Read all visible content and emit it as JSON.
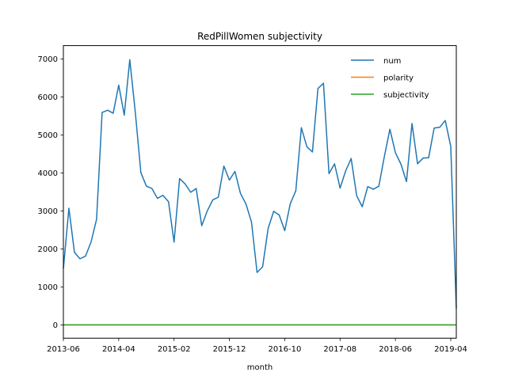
{
  "chart_data": {
    "type": "line",
    "title": "RedPillWomen subjectivity",
    "xlabel": "month",
    "ylabel": "",
    "x_tick_labels": [
      "2013-06",
      "2014-04",
      "2015-02",
      "2015-12",
      "2016-10",
      "2017-08",
      "2018-06",
      "2019-04"
    ],
    "y_ticks": [
      0,
      1000,
      2000,
      3000,
      4000,
      5000,
      6000,
      7000
    ],
    "ylim": [
      -350,
      7350
    ],
    "legend_position": "top-right",
    "grid": false,
    "x": [
      "2013-06",
      "2013-07",
      "2013-08",
      "2013-09",
      "2013-10",
      "2013-11",
      "2013-12",
      "2014-01",
      "2014-02",
      "2014-03",
      "2014-04",
      "2014-05",
      "2014-06",
      "2014-07",
      "2014-08",
      "2014-09",
      "2014-10",
      "2014-11",
      "2014-12",
      "2015-01",
      "2015-02",
      "2015-03",
      "2015-04",
      "2015-05",
      "2015-06",
      "2015-07",
      "2015-08",
      "2015-09",
      "2015-10",
      "2015-11",
      "2015-12",
      "2016-01",
      "2016-02",
      "2016-03",
      "2016-04",
      "2016-05",
      "2016-06",
      "2016-07",
      "2016-08",
      "2016-09",
      "2016-10",
      "2016-11",
      "2016-12",
      "2017-01",
      "2017-02",
      "2017-03",
      "2017-04",
      "2017-05",
      "2017-06",
      "2017-07",
      "2017-08",
      "2017-09",
      "2017-10",
      "2017-11",
      "2017-12",
      "2018-01",
      "2018-02",
      "2018-03",
      "2018-04",
      "2018-05",
      "2018-06",
      "2018-07",
      "2018-08",
      "2018-09",
      "2018-10",
      "2018-11",
      "2018-12",
      "2019-01",
      "2019-02",
      "2019-03",
      "2019-04",
      "2019-05"
    ],
    "series": [
      {
        "name": "num",
        "color": "#1f77b4",
        "values": [
          1480,
          3070,
          1910,
          1740,
          1810,
          2180,
          2780,
          5590,
          5650,
          5570,
          6310,
          5520,
          6980,
          5590,
          4010,
          3650,
          3590,
          3330,
          3410,
          3240,
          2180,
          3850,
          3710,
          3490,
          3590,
          2610,
          3000,
          3290,
          3360,
          4180,
          3810,
          4040,
          3460,
          3180,
          2700,
          1380,
          1530,
          2540,
          2990,
          2890,
          2480,
          3190,
          3530,
          5190,
          4690,
          4550,
          6220,
          6360,
          3980,
          4240,
          3600,
          4050,
          4380,
          3400,
          3110,
          3640,
          3570,
          3650,
          4430,
          5150,
          4530,
          4230,
          3770,
          5300,
          4240,
          4390,
          4400,
          5180,
          5200,
          5380,
          4700,
          430
        ]
      },
      {
        "name": "polarity",
        "color": "#ff7f0e",
        "values": [
          0,
          0,
          0,
          0,
          0,
          0,
          0,
          0,
          0,
          0,
          0,
          0,
          0,
          0,
          0,
          0,
          0,
          0,
          0,
          0,
          0,
          0,
          0,
          0,
          0,
          0,
          0,
          0,
          0,
          0,
          0,
          0,
          0,
          0,
          0,
          0,
          0,
          0,
          0,
          0,
          0,
          0,
          0,
          0,
          0,
          0,
          0,
          0,
          0,
          0,
          0,
          0,
          0,
          0,
          0,
          0,
          0,
          0,
          0,
          0,
          0,
          0,
          0,
          0,
          0,
          0,
          0,
          0,
          0,
          0,
          0,
          0
        ]
      },
      {
        "name": "subjectivity",
        "color": "#2ca02c",
        "values": [
          0.5,
          0.5,
          0.5,
          0.5,
          0.5,
          0.5,
          0.5,
          0.5,
          0.5,
          0.5,
          0.5,
          0.5,
          0.5,
          0.5,
          0.5,
          0.5,
          0.5,
          0.5,
          0.5,
          0.5,
          0.5,
          0.5,
          0.5,
          0.5,
          0.5,
          0.5,
          0.5,
          0.5,
          0.5,
          0.5,
          0.5,
          0.5,
          0.5,
          0.5,
          0.5,
          0.5,
          0.5,
          0.5,
          0.5,
          0.5,
          0.5,
          0.5,
          0.5,
          0.5,
          0.5,
          0.5,
          0.5,
          0.5,
          0.5,
          0.5,
          0.5,
          0.5,
          0.5,
          0.5,
          0.5,
          0.5,
          0.5,
          0.5,
          0.5,
          0.5,
          0.5,
          0.5,
          0.5,
          0.5,
          0.5,
          0.5,
          0.5,
          0.5,
          0.5,
          0.5,
          0.5,
          0.5
        ]
      }
    ]
  }
}
